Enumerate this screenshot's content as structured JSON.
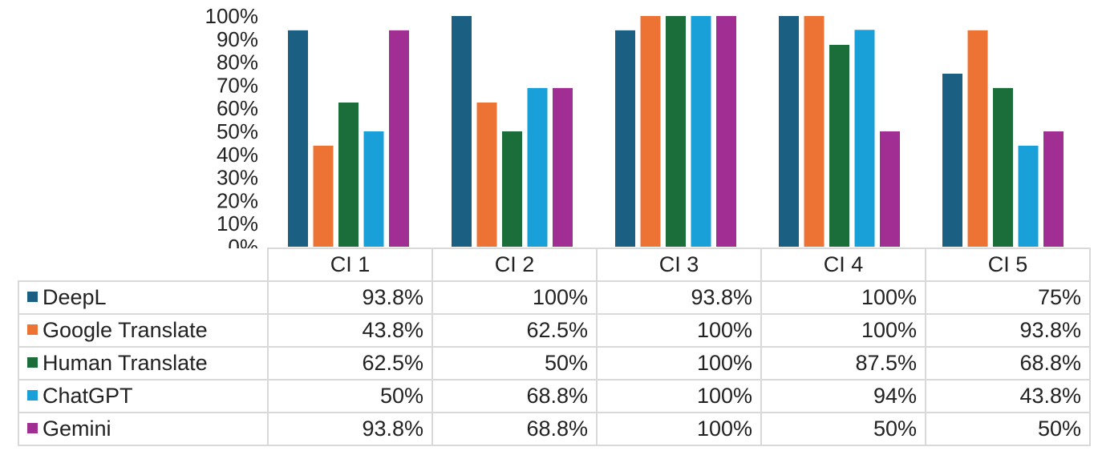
{
  "chart_data": {
    "type": "bar",
    "categories": [
      "CI 1",
      "CI 2",
      "CI 3",
      "CI 4",
      "CI 5"
    ],
    "ylim": [
      0,
      100
    ],
    "yticks": [
      "0%",
      "10%",
      "20%",
      "30%",
      "40%",
      "50%",
      "60%",
      "70%",
      "80%",
      "90%",
      "100%"
    ],
    "legend": "data table",
    "series": [
      {
        "name": "DeepL",
        "color": "#1b5f83",
        "values": [
          93.8,
          100,
          93.8,
          100,
          75
        ],
        "labels": [
          "93.8%",
          "100%",
          "93.8%",
          "100%",
          "75%"
        ]
      },
      {
        "name": "Google Translate",
        "color": "#ed7335",
        "values": [
          43.8,
          62.5,
          100,
          100,
          93.8
        ],
        "labels": [
          "43.8%",
          "62.5%",
          "100%",
          "100%",
          "93.8%"
        ]
      },
      {
        "name": "Human Translate",
        "color": "#1b6d39",
        "values": [
          62.5,
          50,
          100,
          87.5,
          68.8
        ],
        "labels": [
          "62.5%",
          "50%",
          "100%",
          "87.5%",
          "68.8%"
        ]
      },
      {
        "name": "ChatGPT",
        "color": "#1aa0d8",
        "values": [
          50,
          68.8,
          100,
          94,
          43.8
        ],
        "labels": [
          "50%",
          "68.8%",
          "100%",
          "94%",
          "43.8%"
        ]
      },
      {
        "name": "Gemini",
        "color": "#a02e93",
        "values": [
          93.8,
          68.8,
          100,
          50,
          50
        ],
        "labels": [
          "93.8%",
          "68.8%",
          "100%",
          "50%",
          "50%"
        ]
      }
    ]
  }
}
